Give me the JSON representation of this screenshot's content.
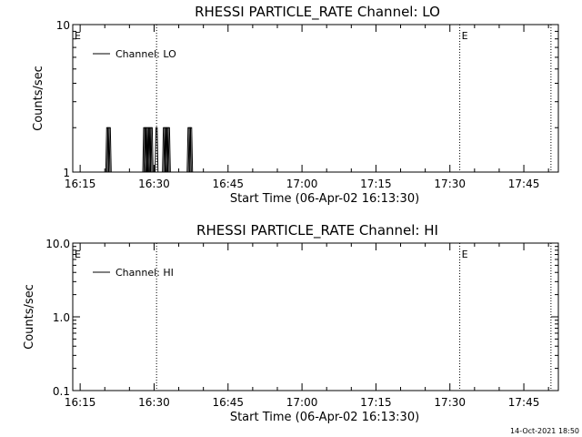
{
  "chart_data": [
    {
      "type": "line",
      "title": "RHESSI PARTICLE_RATE Channel: LO",
      "xlabel": "Start Time (06-Apr-02 16:13:30)",
      "ylabel": "Counts/sec",
      "yscale": "log",
      "ylim": [
        1,
        10
      ],
      "ytick_labels": [
        "1",
        "10"
      ],
      "xlim": [
        "16:13:30",
        "17:52:00"
      ],
      "xtick_labels": [
        "16:15",
        "16:30",
        "16:45",
        "17:00",
        "17:15",
        "17:30",
        "17:45"
      ],
      "legend": {
        "placement": "top-left",
        "entries": [
          "Channel: LO"
        ]
      },
      "markers": [
        {
          "time": "16:13:30",
          "label": "E"
        },
        {
          "time": "16:30:30",
          "label": ""
        },
        {
          "time": "17:32:00",
          "label": "E"
        },
        {
          "time": "17:50:30",
          "label": ""
        }
      ],
      "series": [
        {
          "name": "Channel: LO",
          "x": [
            "16:20:30",
            "16:20:45",
            "16:21:00",
            "16:28:00",
            "16:28:15",
            "16:28:30",
            "16:28:45",
            "16:29:00",
            "16:29:15",
            "16:29:30",
            "16:30:30",
            "16:32:00",
            "16:32:15",
            "16:32:30",
            "16:32:45",
            "16:33:00",
            "16:37:00",
            "16:37:15",
            "16:37:30"
          ],
          "y": [
            2,
            2,
            2,
            2,
            2,
            2,
            2,
            2,
            2,
            2,
            2,
            2,
            2,
            2,
            2,
            2,
            2,
            2,
            2
          ]
        }
      ]
    },
    {
      "type": "line",
      "title": "RHESSI PARTICLE_RATE Channel: HI",
      "xlabel": "Start Time (06-Apr-02 16:13:30)",
      "ylabel": "Counts/sec",
      "yscale": "log",
      "ylim": [
        0.1,
        10
      ],
      "ytick_labels": [
        "0.1",
        "1.0",
        "10.0"
      ],
      "xlim": [
        "16:13:30",
        "17:52:00"
      ],
      "xtick_labels": [
        "16:15",
        "16:30",
        "16:45",
        "17:00",
        "17:15",
        "17:30",
        "17:45"
      ],
      "legend": {
        "placement": "top-left",
        "entries": [
          "Channel: HI"
        ]
      },
      "markers": [
        {
          "time": "16:13:30",
          "label": "E"
        },
        {
          "time": "16:30:30",
          "label": ""
        },
        {
          "time": "17:32:00",
          "label": "E"
        },
        {
          "time": "17:50:30",
          "label": ""
        }
      ],
      "series": [
        {
          "name": "Channel: HI",
          "x": [],
          "y": []
        }
      ]
    }
  ],
  "footer": {
    "timestamp": "14-Oct-2021 18:50"
  }
}
